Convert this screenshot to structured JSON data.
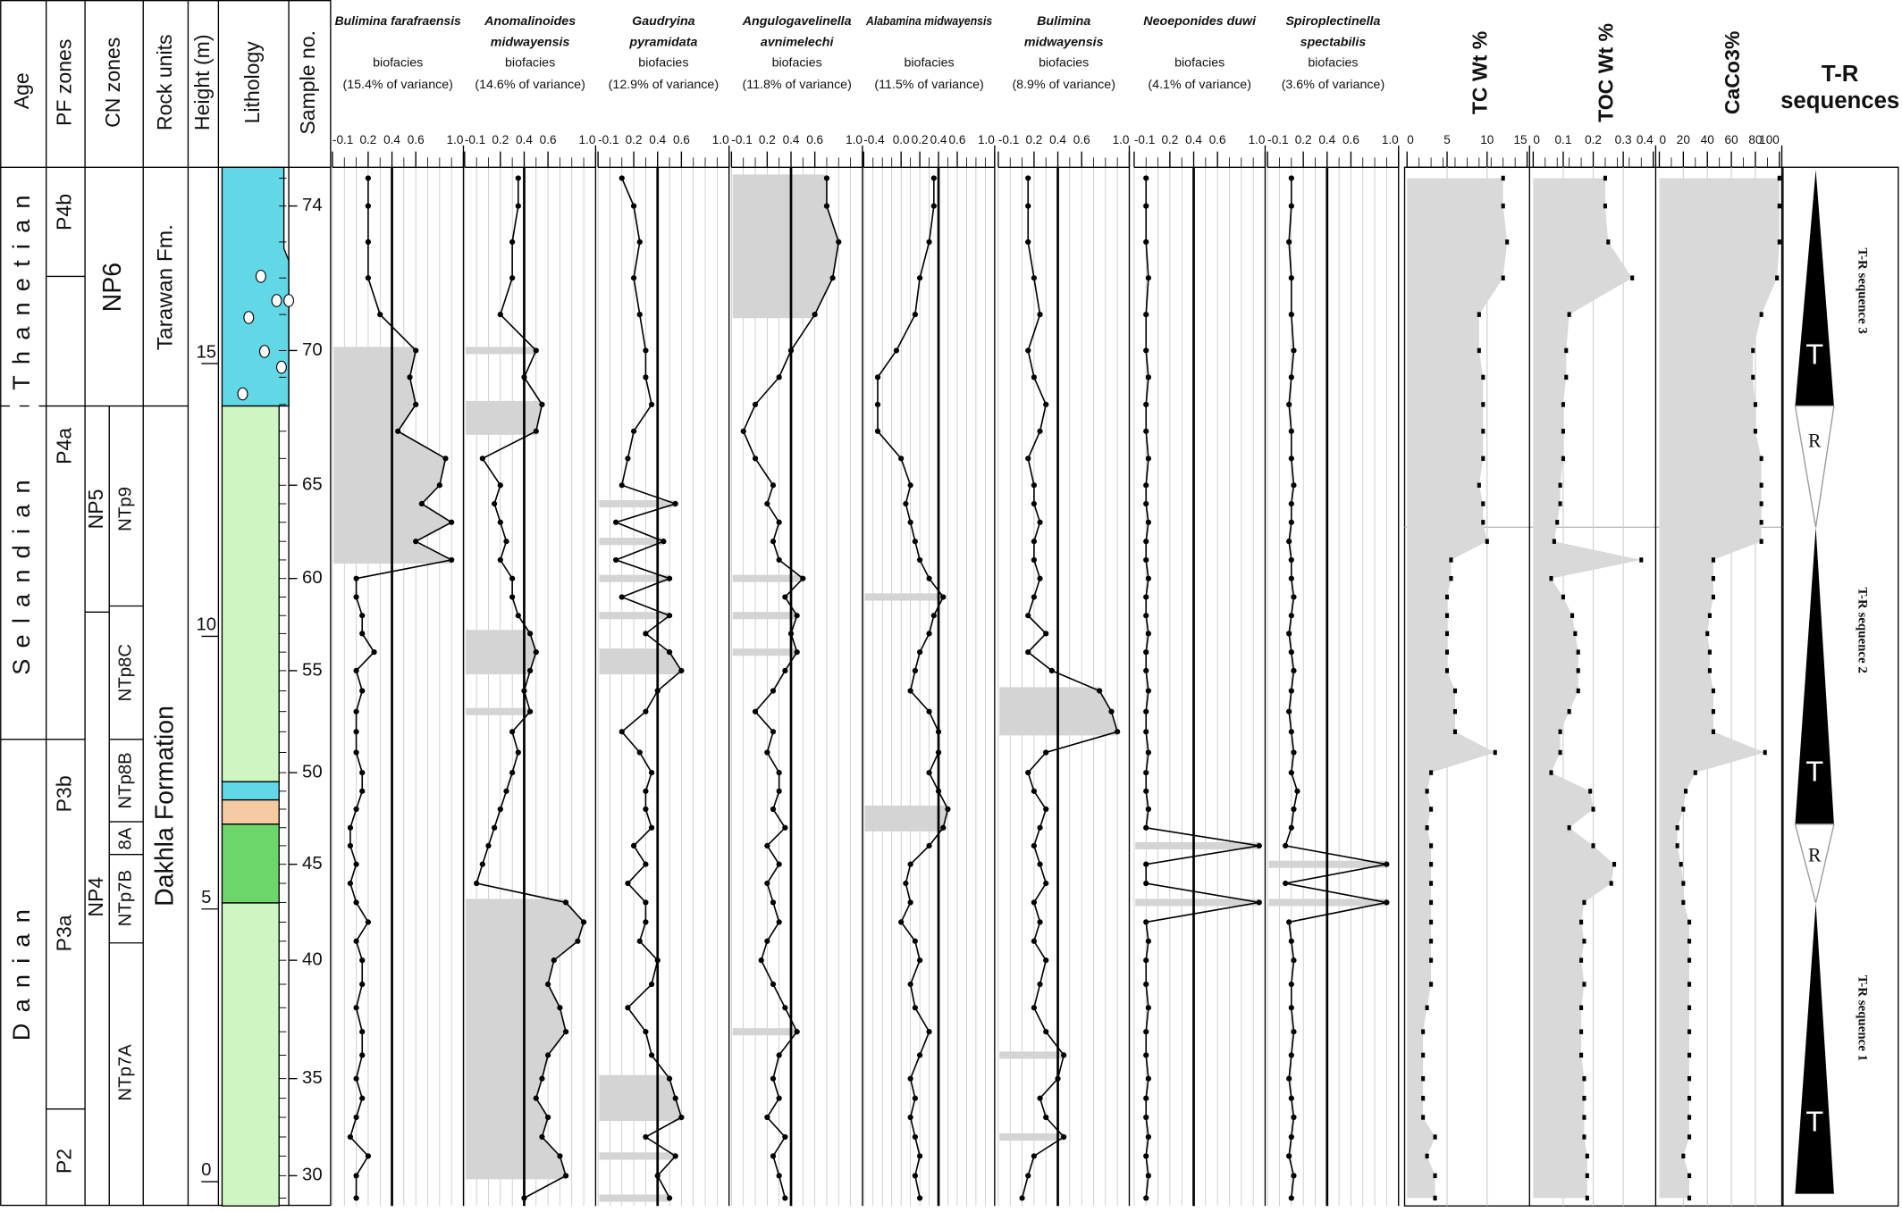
{
  "headers": {
    "age": "Age",
    "pf": "PF zones",
    "cn": "CN zones",
    "rock": "Rock units",
    "height": "Height (m)",
    "lithology": "Lithology",
    "sample": "Sample no."
  },
  "ages": [
    "Thanetian",
    "Selandian",
    "Danian"
  ],
  "pf_zones": [
    "P4b",
    "P4a",
    "P3b",
    "P3a",
    "P2"
  ],
  "cn_zones": [
    "NP6",
    "NP5",
    "NP4"
  ],
  "ntp_zones": [
    "NTp9",
    "NTp8C",
    "NTp8B",
    "8A",
    "NTp7B",
    "NTp7A"
  ],
  "rock_units": [
    "Tarawan Fm.",
    "Dakhla Formation"
  ],
  "height_ticks": [
    0,
    5,
    10,
    15
  ],
  "sample_ticks": [
    {
      "value": 0.11,
      "label": "30"
    },
    {
      "value": 1.89,
      "label": "35"
    },
    {
      "value": 4.06,
      "label": "40"
    },
    {
      "value": 5.82,
      "label": "45"
    },
    {
      "value": 7.5,
      "label": "50"
    },
    {
      "value": 9.37,
      "label": "55"
    },
    {
      "value": 11.06,
      "label": "60"
    },
    {
      "value": 12.77,
      "label": "65"
    },
    {
      "value": 15.24,
      "label": "70"
    },
    {
      "value": 17.89,
      "label": "74"
    }
  ],
  "height_m": [
    -0.3,
    0.11,
    0.47,
    0.82,
    1.18,
    1.53,
    1.89,
    2.32,
    2.75,
    3.19,
    3.62,
    4.06,
    4.41,
    4.76,
    5.12,
    5.47,
    5.82,
    6.16,
    6.49,
    6.83,
    7.16,
    7.5,
    7.87,
    8.25,
    8.62,
    9.0,
    9.37,
    9.71,
    10.05,
    10.38,
    10.72,
    11.06,
    11.4,
    11.74,
    12.09,
    12.43,
    12.77,
    13.26,
    13.76,
    14.25,
    14.75,
    15.24,
    15.9,
    16.57,
    17.23,
    17.89,
    18.4
  ],
  "biofacies": [
    {
      "name_lines": [
        "Bulimina farafraensis"
      ],
      "label": "biofacies",
      "variance": "(15.4% of variance)",
      "xlim": [
        -0.1,
        1.0
      ],
      "xticks": [
        -0.1,
        0.2,
        0.4,
        0.6,
        {
          "value": 1,
          "label": "1.0"
        }
      ],
      "reference": 0.4,
      "values": [
        0.1,
        0.1,
        0.2,
        0.05,
        0.1,
        0.15,
        0.1,
        0.15,
        0.15,
        0.1,
        0.15,
        0.15,
        0.1,
        0.2,
        0.1,
        0.05,
        0.1,
        0.05,
        0.05,
        0.1,
        0.15,
        0.15,
        0.1,
        0.1,
        0.1,
        0.15,
        0.1,
        0.25,
        0.15,
        0.15,
        0.1,
        0.1,
        0.9,
        0.6,
        0.9,
        0.65,
        0.8,
        0.85,
        0.45,
        0.6,
        0.55,
        0.6,
        0.3,
        0.2,
        0.2,
        0.2,
        0.2
      ]
    },
    {
      "name_lines": [
        "Anomalinoides",
        "midwayensis"
      ],
      "label": "biofacies",
      "variance": "(14.6% of variance)",
      "xlim": [
        -0.1,
        1.0
      ],
      "xticks": [
        -0.1,
        0.2,
        0.4,
        0.6,
        {
          "value": 1,
          "label": "1.0"
        }
      ],
      "reference": 0.4,
      "values": [
        0.4,
        0.75,
        0.7,
        0.55,
        0.6,
        0.5,
        0.55,
        0.6,
        0.75,
        0.7,
        0.6,
        0.65,
        0.85,
        0.9,
        0.75,
        0.0,
        0.05,
        0.1,
        0.15,
        0.2,
        0.25,
        0.3,
        0.35,
        0.3,
        0.45,
        0.4,
        0.45,
        0.5,
        0.45,
        0.35,
        0.3,
        0.3,
        0.2,
        0.25,
        0.2,
        0.15,
        0.2,
        0.05,
        0.5,
        0.55,
        0.4,
        0.5,
        0.2,
        0.3,
        0.3,
        0.35,
        0.35
      ]
    },
    {
      "name_lines": [
        "Gaudryina",
        "pyramidata"
      ],
      "label": "biofacies",
      "variance": "(12.9% of variance)",
      "xlim": [
        -0.1,
        1.0
      ],
      "xticks": [
        -0.1,
        0.2,
        0.4,
        0.6,
        {
          "value": 1,
          "label": "1.0"
        }
      ],
      "reference": 0.4,
      "values": [
        0.5,
        0.4,
        0.55,
        0.3,
        0.6,
        0.55,
        0.5,
        0.35,
        0.3,
        0.15,
        0.35,
        0.4,
        0.25,
        0.3,
        0.3,
        0.15,
        0.3,
        0.2,
        0.35,
        0.3,
        0.3,
        0.35,
        0.25,
        0.1,
        0.3,
        0.4,
        0.6,
        0.5,
        0.3,
        0.5,
        0.1,
        0.5,
        0.05,
        0.45,
        0.05,
        0.55,
        0.1,
        0.15,
        0.2,
        0.35,
        0.3,
        0.3,
        0.25,
        0.2,
        0.25,
        0.2,
        0.1
      ]
    },
    {
      "name_lines": [
        "Angulogavelinella",
        "avnimelechi"
      ],
      "label": "biofacies",
      "variance": "(11.8% of variance)",
      "xlim": [
        -0.1,
        1.0
      ],
      "xticks": [
        -0.1,
        0.2,
        0.4,
        0.6,
        {
          "value": 1,
          "label": "1.0"
        }
      ],
      "reference": 0.4,
      "values": [
        0.35,
        0.3,
        0.25,
        0.35,
        0.2,
        0.3,
        0.25,
        0.3,
        0.45,
        0.35,
        0.25,
        0.15,
        0.2,
        0.3,
        0.25,
        0.2,
        0.3,
        0.2,
        0.35,
        0.25,
        0.3,
        0.3,
        0.2,
        0.25,
        0.1,
        0.25,
        0.35,
        0.45,
        0.4,
        0.45,
        0.35,
        0.5,
        0.3,
        0.25,
        0.3,
        0.2,
        0.25,
        0.1,
        0.0,
        0.1,
        0.3,
        0.4,
        0.6,
        0.75,
        0.8,
        0.7,
        0.7
      ]
    },
    {
      "name_lines": [
        "Alabamina midwayensis"
      ],
      "label": "biofacies",
      "variance": "(11.5% of variance)",
      "xlim": [
        -0.4,
        1.0
      ],
      "xticks": [
        -0.4,
        {
          "value": 0,
          "label": "0.0"
        },
        0.2,
        0.4,
        0.6,
        {
          "value": 1,
          "label": "1.0"
        }
      ],
      "reference": 0.4,
      "values": [
        0.2,
        0.15,
        0.2,
        0.15,
        0.1,
        0.15,
        0.1,
        0.2,
        0.3,
        0.15,
        0.1,
        0.2,
        0.15,
        0.0,
        0.1,
        0.05,
        0.1,
        0.3,
        0.45,
        0.5,
        0.4,
        0.3,
        0.4,
        0.4,
        0.3,
        0.1,
        0.15,
        0.2,
        0.3,
        0.35,
        0.45,
        0.3,
        0.2,
        0.15,
        0.1,
        0.05,
        0.1,
        0.0,
        -0.25,
        -0.25,
        -0.25,
        -0.05,
        0.15,
        0.2,
        0.3,
        0.35,
        0.35
      ]
    },
    {
      "name_lines": [
        "Bulimina",
        "midwayensis"
      ],
      "label": "biofacies",
      "variance": "(8.9% of variance)",
      "xlim": [
        -0.1,
        1.0
      ],
      "xticks": [
        -0.1,
        0.2,
        0.4,
        0.6,
        {
          "value": 1,
          "label": "1.0"
        }
      ],
      "reference": 0.4,
      "values": [
        0.1,
        0.15,
        0.2,
        0.45,
        0.3,
        0.25,
        0.4,
        0.45,
        0.3,
        0.2,
        0.25,
        0.3,
        0.2,
        0.25,
        0.2,
        0.3,
        0.25,
        0.2,
        0.25,
        0.3,
        0.2,
        0.15,
        0.3,
        0.9,
        0.85,
        0.75,
        0.35,
        0.15,
        0.3,
        0.15,
        0.2,
        0.25,
        0.2,
        0.2,
        0.25,
        0.2,
        0.2,
        0.15,
        0.25,
        0.3,
        0.2,
        0.15,
        0.25,
        0.2,
        0.15,
        0.15,
        0.15
      ]
    },
    {
      "name_lines": [
        "Neoeponides duwi"
      ],
      "label": "biofacies",
      "variance": "(4.1% of variance)",
      "xlim": [
        -0.1,
        1.0
      ],
      "xticks": [
        -0.1,
        0.2,
        0.4,
        0.6,
        {
          "value": 1,
          "label": "1.0"
        }
      ],
      "reference": 0.4,
      "values": [
        0.0,
        0.02,
        0.0,
        0.02,
        0.0,
        0.0,
        0.02,
        0.0,
        0.0,
        0.02,
        0.0,
        0.0,
        0.02,
        0.0,
        0.95,
        0.0,
        0.0,
        0.95,
        0.0,
        0.02,
        0.0,
        0.0,
        0.02,
        0.0,
        0.0,
        0.02,
        0.0,
        0.0,
        0.02,
        0.0,
        0.0,
        0.02,
        0.0,
        0.0,
        0.02,
        0.0,
        0.0,
        0.02,
        0.0,
        0.0,
        0.02,
        0.0,
        0.0,
        0.02,
        0.0,
        0.0,
        0.0
      ]
    },
    {
      "name_lines": [
        "Spiroplectinella",
        "spectabilis"
      ],
      "label": "biofacies",
      "variance": "(3.6% of variance)",
      "xlim": [
        -0.1,
        1.0
      ],
      "xticks": [
        -0.1,
        0.2,
        0.4,
        0.6,
        {
          "value": 1,
          "label": "1.0"
        }
      ],
      "reference": 0.4,
      "values": [
        0.1,
        0.12,
        0.08,
        0.1,
        0.12,
        0.1,
        0.08,
        0.1,
        0.12,
        0.1,
        0.1,
        0.12,
        0.1,
        0.08,
        0.9,
        0.05,
        0.9,
        0.05,
        0.1,
        0.12,
        0.15,
        0.1,
        0.12,
        0.1,
        0.08,
        0.1,
        0.12,
        0.1,
        0.08,
        0.1,
        0.12,
        0.1,
        0.1,
        0.08,
        0.1,
        0.1,
        0.12,
        0.1,
        0.1,
        0.08,
        0.1,
        0.12,
        0.1,
        0.1,
        0.08,
        0.1,
        0.1
      ]
    }
  ],
  "geochem": [
    {
      "name": "TC Wt %",
      "xlim": [
        0,
        15
      ],
      "xticks": [
        0,
        5,
        10,
        15
      ],
      "values": [
        3.5,
        3.5,
        2.5,
        3.5,
        2,
        2,
        2,
        2,
        2,
        2.5,
        3,
        3,
        3,
        3,
        3,
        3,
        3,
        3,
        2.5,
        3,
        2.5,
        3,
        11,
        6,
        6,
        6,
        5,
        5,
        5,
        5,
        5,
        5.5,
        5.5,
        10,
        9.5,
        9.5,
        9,
        9.5,
        9.5,
        9.5,
        9.5,
        9,
        9,
        12,
        12.5,
        12,
        12
      ]
    },
    {
      "name": "TOC Wt %",
      "xlim": [
        0,
        0.4
      ],
      "xticks": [
        0,
        0.1,
        0.2,
        0.3,
        0.4
      ],
      "values": [
        0.18,
        0.18,
        0.18,
        0.17,
        0.17,
        0.17,
        0.17,
        0.16,
        0.16,
        0.16,
        0.17,
        0.16,
        0.17,
        0.16,
        0.17,
        0.26,
        0.27,
        0.2,
        0.12,
        0.2,
        0.19,
        0.06,
        0.09,
        0.09,
        0.12,
        0.15,
        0.15,
        0.15,
        0.14,
        0.13,
        0.1,
        0.06,
        0.36,
        0.07,
        0.08,
        0.09,
        0.09,
        0.1,
        0.1,
        0.1,
        0.11,
        0.11,
        0.12,
        0.33,
        0.25,
        0.24,
        0.24
      ]
    },
    {
      "name": "CaCo3%",
      "xlim": [
        0,
        100
      ],
      "xticks": [
        0,
        20,
        40,
        60,
        80,
        100
      ],
      "values": [
        25,
        25,
        20,
        25,
        25,
        25,
        25,
        25,
        25,
        25,
        25,
        25,
        25,
        25,
        20,
        20,
        18,
        15,
        15,
        20,
        22,
        30,
        88,
        45,
        45,
        45,
        42,
        42,
        40,
        42,
        45,
        45,
        45,
        85,
        85,
        85,
        85,
        85,
        80,
        80,
        78,
        78,
        85,
        98,
        100,
        100,
        100
      ]
    }
  ],
  "tr": {
    "title_lines": [
      "T-R",
      "sequences"
    ],
    "marks": [
      "T",
      "R",
      "T",
      "R",
      "T"
    ],
    "sequences": [
      "T-R sequence 3",
      "T-R sequence 2",
      "T-R sequence 1"
    ]
  }
}
